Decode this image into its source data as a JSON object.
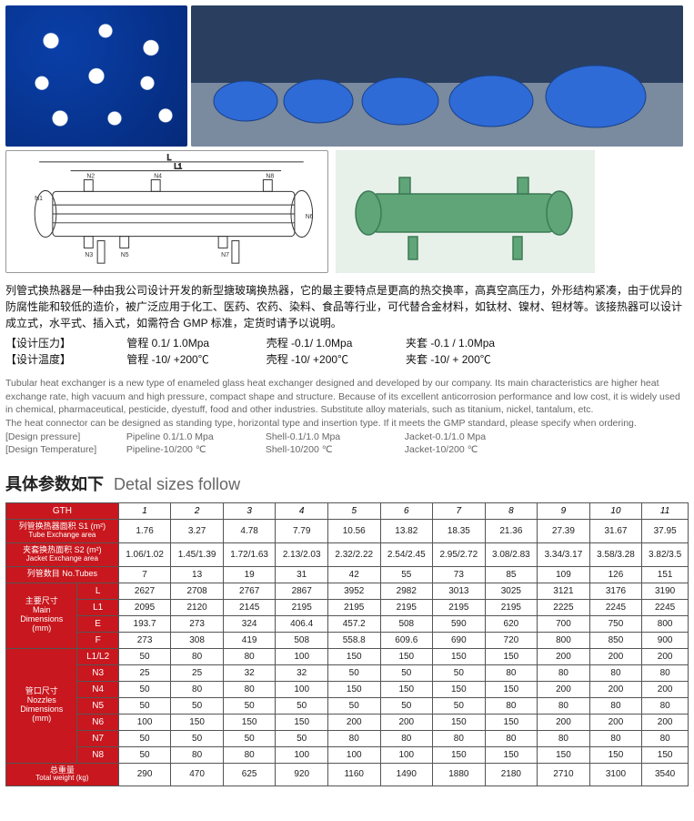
{
  "desc_cn_p1": "列管式换热器是一种由我公司设计开发的新型搪玻璃换热器，它的最主要特点是更高的热交换率，高真空高压力，外形结构紧凑，由于优异的防腐性能和较低的造价，被广泛应用于化工、医药、农药、染料、食品等行业，可代替合金材料，如钛材、镍材、钽材等。该接热器可以设计成立式，水平式、插入式，如需符合 GMP 标准，定货时请予以说明。",
  "spec_cn_1_label": "【设计压力】",
  "spec_cn_1_v1": "管程 0.1/ 1.0Mpa",
  "spec_cn_1_v2": "壳程 -0.1/ 1.0Mpa",
  "spec_cn_1_v3": "夹套 -0.1 / 1.0Mpa",
  "spec_cn_2_label": "【设计温度】",
  "spec_cn_2_v1": "管程 -10/ +200℃",
  "spec_cn_2_v2": "壳程 -10/ +200℃",
  "spec_cn_2_v3": "夹套 -10/ + 200℃",
  "desc_en_p1": "Tubular heat exchanger is a new type of enameled glass heat exchanger designed and developed by our company. Its main characteristics are higher heat exchange rate, high vacuum and high pressure, compact shape and structure. Because of its excellent anticorrosion performance and low cost, it is widely used in chemical, pharmaceutical, pesticide, dyestuff, food and other industries. Substitute alloy materials, such as titanium, nickel, tantalum, etc.",
  "desc_en_p2": "The heat connector can be designed as standing type, horizontal type and insertion type. If it meets the GMP standard, please specify when ordering.",
  "spec_en_1_label": "[Design pressure]",
  "spec_en_1_v1": "Pipeline 0.1/1.0 Mpa",
  "spec_en_1_v2": "Shell-0.1/1.0 Mpa",
  "spec_en_1_v3": "Jacket-0.1/1.0 Mpa",
  "spec_en_2_label": "[Design Temperature]",
  "spec_en_2_v1": "Pipeline-10/200 ℃",
  "spec_en_2_v2": "Shell-10/200 ℃",
  "spec_en_2_v3": "Jacket-10/200 ℃",
  "section_title_cn": "具体参数如下",
  "section_title_en": "Detal sizes follow",
  "table": {
    "header_gth": "GTH",
    "cols": [
      "1",
      "2",
      "3",
      "4",
      "5",
      "6",
      "7",
      "8",
      "9",
      "10",
      "11"
    ],
    "rows": [
      {
        "label": "列管换热器面积 S1 (m²)",
        "sub": "Tube Exchange area",
        "vals": [
          "1.76",
          "3.27",
          "4.78",
          "7.79",
          "10.56",
          "13.82",
          "18.35",
          "21.36",
          "27.39",
          "31.67",
          "37.95"
        ]
      },
      {
        "label": "夹套换热面积 S2 (m²)",
        "sub": "Jacket Exchange area",
        "vals": [
          "1.06/1.02",
          "1.45/1.39",
          "1.72/1.63",
          "2.13/2.03",
          "2.32/2.22",
          "2.54/2.45",
          "2.95/2.72",
          "3.08/2.83",
          "3.34/3.17",
          "3.58/3.28",
          "3.82/3.5"
        ]
      },
      {
        "label": "列管数目 No.Tubes",
        "sub": "",
        "vals": [
          "7",
          "13",
          "19",
          "31",
          "42",
          "55",
          "73",
          "85",
          "109",
          "126",
          "151"
        ]
      }
    ],
    "main_dim_label": "主要尺寸\nMain\nDimensions\n(mm)",
    "main_dim_rows": [
      {
        "k": "L",
        "vals": [
          "2627",
          "2708",
          "2767",
          "2867",
          "3952",
          "2982",
          "3013",
          "3025",
          "3121",
          "3176",
          "3190"
        ]
      },
      {
        "k": "L1",
        "vals": [
          "2095",
          "2120",
          "2145",
          "2195",
          "2195",
          "2195",
          "2195",
          "2195",
          "2225",
          "2245",
          "2245"
        ]
      },
      {
        "k": "E",
        "vals": [
          "193.7",
          "273",
          "324",
          "406.4",
          "457.2",
          "508",
          "590",
          "620",
          "700",
          "750",
          "800"
        ]
      },
      {
        "k": "F",
        "vals": [
          "273",
          "308",
          "419",
          "508",
          "558.8",
          "609.6",
          "690",
          "720",
          "800",
          "850",
          "900"
        ]
      }
    ],
    "nozzle_dim_label": "管口尺寸\nNozzles\nDimensions\n(mm)",
    "nozzle_dim_rows": [
      {
        "k": "L1/L2",
        "vals": [
          "50",
          "80",
          "80",
          "100",
          "150",
          "150",
          "150",
          "150",
          "200",
          "200",
          "200"
        ]
      },
      {
        "k": "N3",
        "vals": [
          "25",
          "25",
          "32",
          "32",
          "50",
          "50",
          "50",
          "80",
          "80",
          "80",
          "80"
        ]
      },
      {
        "k": "N4",
        "vals": [
          "50",
          "80",
          "80",
          "100",
          "150",
          "150",
          "150",
          "150",
          "200",
          "200",
          "200"
        ]
      },
      {
        "k": "N5",
        "vals": [
          "50",
          "50",
          "50",
          "50",
          "50",
          "50",
          "50",
          "80",
          "80",
          "80",
          "80"
        ]
      },
      {
        "k": "N6",
        "vals": [
          "100",
          "150",
          "150",
          "150",
          "200",
          "200",
          "150",
          "150",
          "200",
          "200",
          "200"
        ]
      },
      {
        "k": "N7",
        "vals": [
          "50",
          "50",
          "50",
          "50",
          "80",
          "80",
          "80",
          "80",
          "80",
          "80",
          "80"
        ]
      },
      {
        "k": "N8",
        "vals": [
          "50",
          "80",
          "80",
          "100",
          "100",
          "100",
          "150",
          "150",
          "150",
          "150",
          "150"
        ]
      }
    ],
    "weight_label": "总重量",
    "weight_sub": "Total weight  (kg)",
    "weight_vals": [
      "290",
      "470",
      "625",
      "920",
      "1160",
      "1490",
      "1880",
      "2180",
      "2710",
      "3100",
      "3540"
    ]
  },
  "diagram_labels": [
    "L",
    "L1",
    "N2",
    "N4",
    "N1",
    "N3",
    "N7",
    "N5",
    "N6",
    "N8"
  ]
}
